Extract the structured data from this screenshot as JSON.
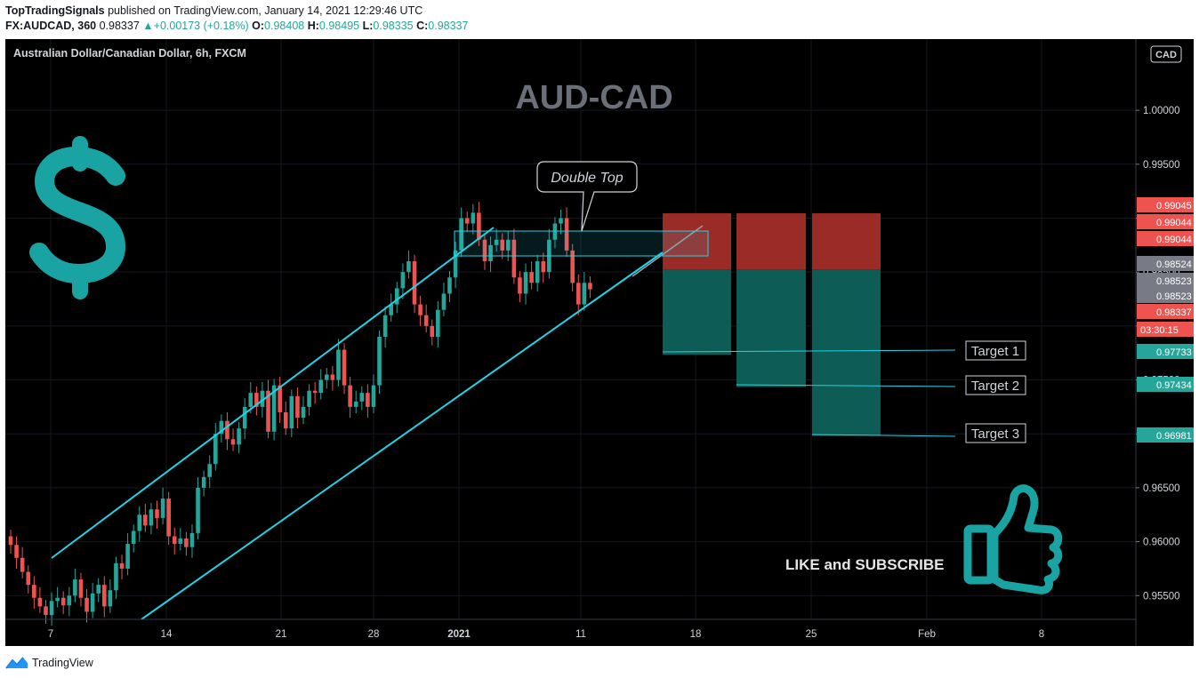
{
  "header": {
    "author": "TopTradingSignals",
    "published_text": " published on TradingView.com, January 14, 2021 12:29:46 UTC",
    "symbol": "FX:AUDCAD, 360",
    "last": "0.98337",
    "change": "+0.00173 (+0.18%)",
    "o_label": "O:",
    "o": "0.98408",
    "h_label": "H:",
    "h": "0.98495",
    "l_label": "L:",
    "l": "0.98335",
    "c_label": "C:",
    "c": "0.98337"
  },
  "chart": {
    "symbol_label": "Australian Dollar/Canadian Dollar, 6h, FXCM",
    "title": "AUD-CAD",
    "currency_badge": "CAD",
    "pattern_label": "Double Top",
    "targets": [
      "Target 1",
      "Target 2",
      "Target 3"
    ],
    "cta": "LIKE and SUBSCRIBE",
    "countdown": "03:30:15",
    "colors": {
      "up": "#26a69a",
      "down": "#ef5350",
      "channel": "#22d3e6",
      "stop": "#9b2b27",
      "profit": "#0d5c55",
      "brand": "#1aa3a3"
    }
  },
  "chart_data": {
    "type": "candlestick",
    "title": "AUD-CAD",
    "x_ticks": [
      "7",
      "14",
      "21",
      "28",
      "2021",
      "11",
      "18",
      "25",
      "Feb",
      "8"
    ],
    "y_ticks": [
      "0.95500",
      "0.96000",
      "0.96500",
      "0.97000",
      "0.97500",
      "0.98000",
      "0.98500",
      "0.99000",
      "0.99500",
      "1.00000"
    ],
    "ylim": [
      0.9528,
      1.0066
    ],
    "price_labels": [
      {
        "value": 0.99045,
        "text": "0.99045",
        "color": "#ef5350"
      },
      {
        "value": 0.99044,
        "text": "0.99044",
        "color": "#ef5350"
      },
      {
        "value": 0.99044,
        "text": "0.99044",
        "color": "#ef5350"
      },
      {
        "value": 0.98524,
        "text": "0.98524",
        "color": "#787b86"
      },
      {
        "value": 0.98523,
        "text": "0.98523",
        "color": "#787b86"
      },
      {
        "value": 0.98523,
        "text": "0.98523",
        "color": "#787b86"
      },
      {
        "value": 0.98337,
        "text": "0.98337",
        "color": "#ef5350"
      },
      {
        "value": 0.97733,
        "text": "0.97733",
        "color": "#26a69a"
      },
      {
        "value": 0.97434,
        "text": "0.97434",
        "color": "#26a69a"
      },
      {
        "value": 0.96981,
        "text": "0.96981",
        "color": "#26a69a"
      }
    ],
    "targets": [
      0.97733,
      0.97434,
      0.96981
    ],
    "entry": 0.98524,
    "stop": 0.99045,
    "resistance_zone": [
      0.98825,
      0.99045
    ]
  },
  "footer": {
    "brand": "TradingView"
  }
}
